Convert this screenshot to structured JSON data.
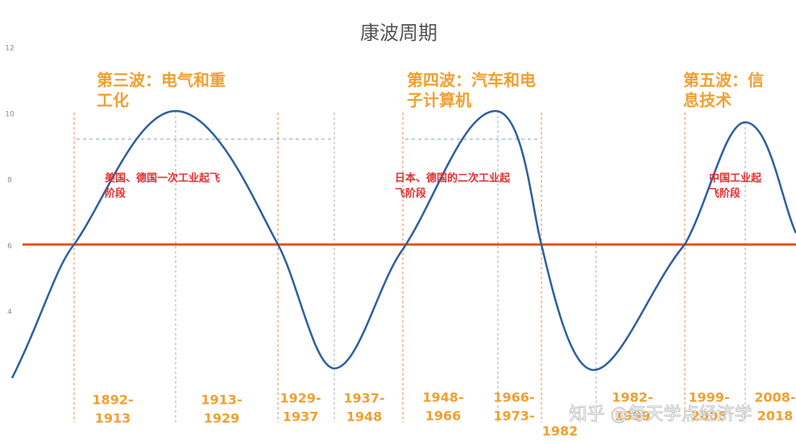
{
  "title": "康波周期",
  "yticks": [
    "12",
    "10",
    "8",
    "6",
    "4"
  ],
  "waves": [
    {
      "lines": [
        "第三波：电气和重",
        "工化"
      ],
      "note": [
        "美国、德国一次工业起飞",
        "阶段"
      ]
    },
    {
      "lines": [
        "第四波：汽车和电",
        "子计算机"
      ],
      "note": [
        "日本、德国的二次工业起",
        "飞阶段"
      ]
    },
    {
      "lines": [
        "第五波：信",
        "息技术"
      ],
      "note": [
        "中国工业起",
        "飞阶段"
      ]
    }
  ],
  "periods": [
    [
      "1892-",
      "1913"
    ],
    [
      "1913-",
      "1929"
    ],
    [
      "1929-",
      "1937"
    ],
    [
      "1937-",
      "1948"
    ],
    [
      "1948-",
      "1966"
    ],
    [
      "1966-",
      "1973-"
    ],
    [
      "1982"
    ],
    [
      "1982-",
      "1999"
    ],
    [
      "1999-",
      "2008"
    ],
    [
      "2008-",
      "2018"
    ]
  ],
  "watermark": "知乎 @每天学点经济学"
}
